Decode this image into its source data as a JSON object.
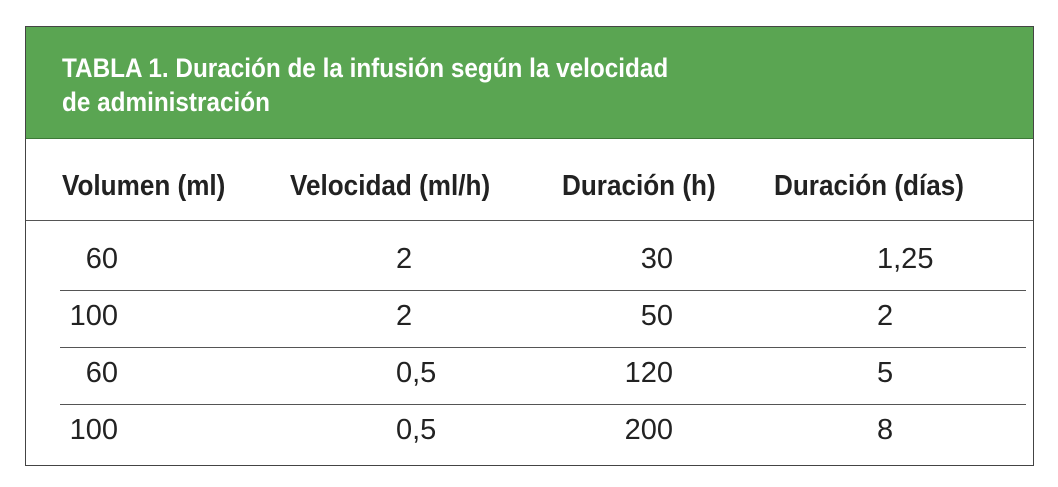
{
  "table": {
    "title_lines": [
      "TABLA 1. Duración de la infusión según la velocidad",
      "de administración"
    ],
    "columns": [
      "Volumen (ml)",
      "Velocidad (ml/h)",
      "Duración (h)",
      "Duración (días)"
    ],
    "rows": [
      [
        "60",
        "2",
        "30",
        "1,25"
      ],
      [
        "100",
        "2",
        "50",
        "2"
      ],
      [
        "60",
        "0,5",
        "120",
        "5"
      ],
      [
        "100",
        "0,5",
        "200",
        "8"
      ]
    ]
  }
}
